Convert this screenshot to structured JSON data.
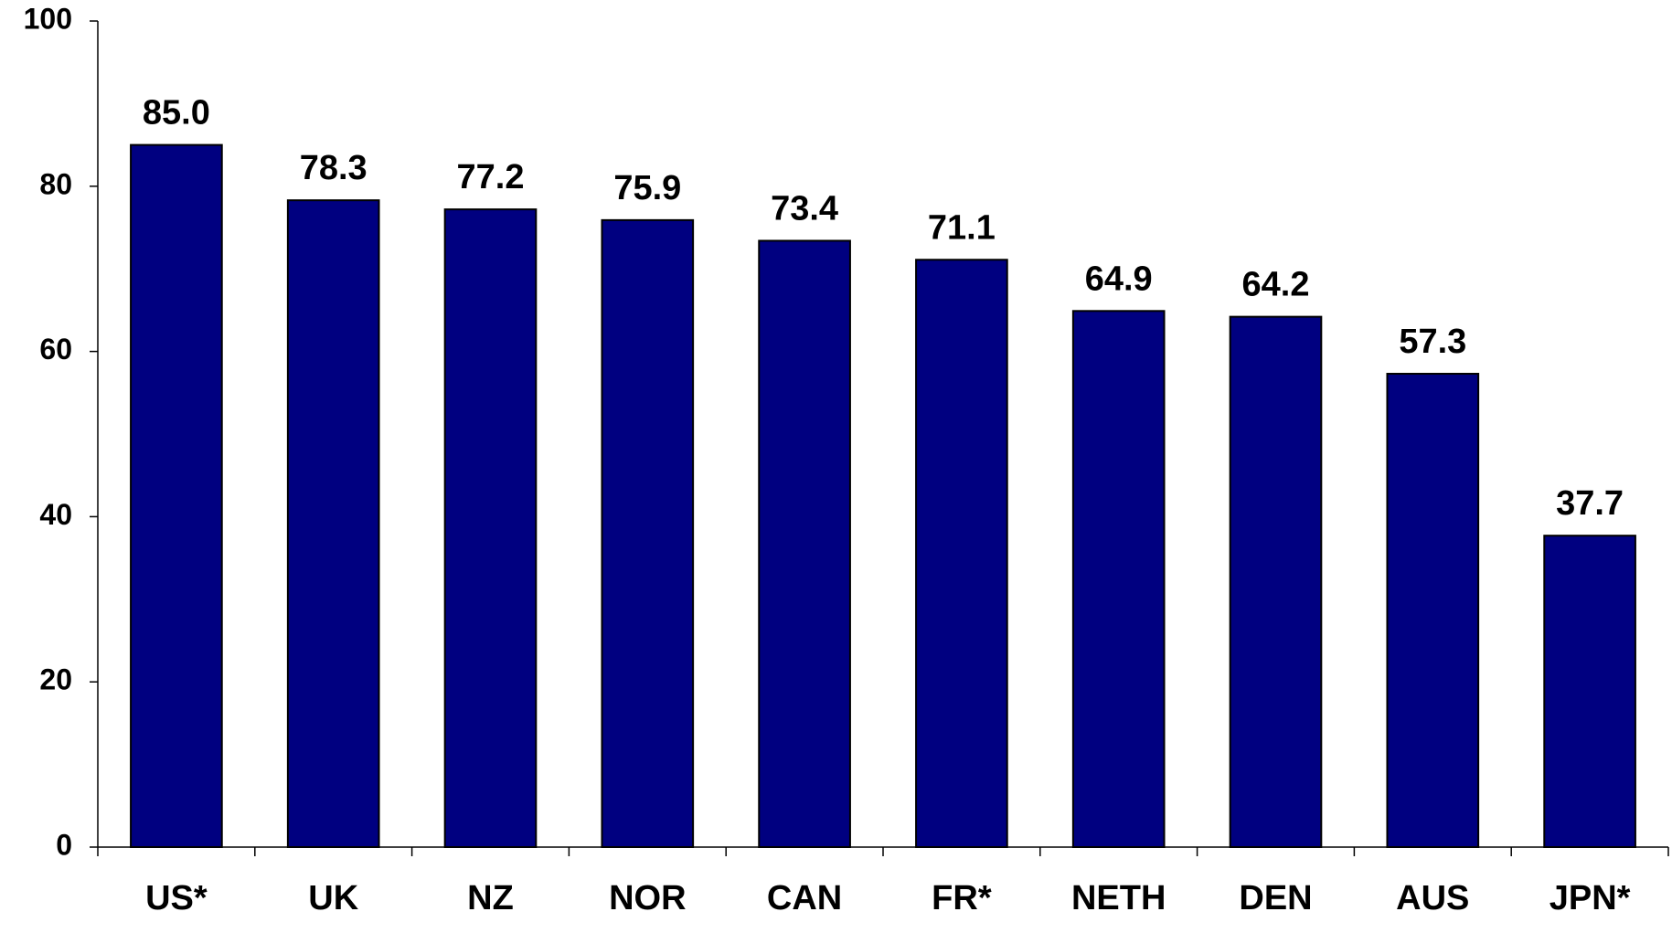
{
  "chart_data": {
    "type": "bar",
    "categories": [
      "US*",
      "UK",
      "NZ",
      "NOR",
      "CAN",
      "FR*",
      "NETH",
      "DEN",
      "AUS",
      "JPN*"
    ],
    "values": [
      85.0,
      78.3,
      77.2,
      75.9,
      73.4,
      71.1,
      64.9,
      64.2,
      57.3,
      37.7
    ],
    "value_labels": [
      "85.0",
      "78.3",
      "77.2",
      "75.9",
      "73.4",
      "71.1",
      "64.9",
      "64.2",
      "57.3",
      "37.7"
    ],
    "color": "#000080",
    "ylim": [
      0,
      100
    ],
    "yticks": [
      0,
      20,
      40,
      60,
      80,
      100
    ],
    "grid": false
  }
}
